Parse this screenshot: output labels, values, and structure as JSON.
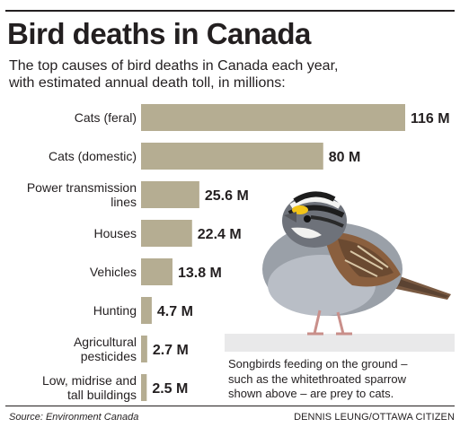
{
  "title": "Bird deaths in Canada",
  "subtitle": [
    "The top causes of bird deaths in Canada each year,",
    "with estimated annual death toll, in millions:"
  ],
  "chart_data": {
    "type": "bar",
    "orientation": "horizontal",
    "categories": [
      [
        "Cats (feral)"
      ],
      [
        "Cats (domestic)"
      ],
      [
        "Power transmission",
        "lines"
      ],
      [
        "Houses"
      ],
      [
        "Vehicles"
      ],
      [
        "Hunting"
      ],
      [
        "Agricultural",
        "pesticides"
      ],
      [
        "Low, midrise and",
        "tall buildings"
      ]
    ],
    "values": [
      116,
      80,
      25.6,
      22.4,
      13.8,
      4.7,
      2.7,
      2.5
    ],
    "value_labels": [
      "116 M",
      "80 M",
      "25.6 M",
      "22.4 M",
      "13.8 M",
      "4.7 M",
      "2.7 M",
      "2.5 M"
    ],
    "unit": "M",
    "bar_color": "#b5ad92",
    "xlim": [
      0,
      116
    ],
    "grid": false,
    "legend": "none"
  },
  "caption": [
    "Songbirds feeding on the ground –",
    "such as the whitethroated sparrow",
    "shown above – are prey to cats."
  ],
  "source": "Source: Environment Canada",
  "credit": "DENNIS LEUNG/OTTAWA CITIZEN",
  "bird_image": "white-throated sparrow photo"
}
